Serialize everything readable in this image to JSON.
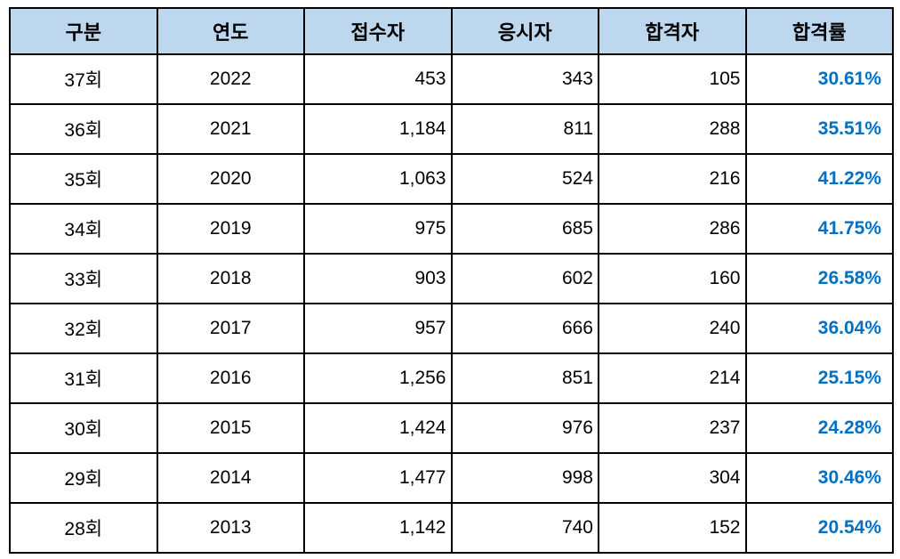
{
  "colors": {
    "header_bg": "#BDD7EE",
    "border": "#000000",
    "body_text": "#000000",
    "pass_rate_text": "#0070C0"
  },
  "table": {
    "columns": [
      {
        "label": "구분",
        "align": "center"
      },
      {
        "label": "연도",
        "align": "center"
      },
      {
        "label": "접수자",
        "align": "right"
      },
      {
        "label": "응시자",
        "align": "right"
      },
      {
        "label": "합격자",
        "align": "right"
      },
      {
        "label": "합격률",
        "align": "rate"
      }
    ],
    "rows": [
      [
        "37회",
        "2022",
        "453",
        "343",
        "105",
        "30.61%"
      ],
      [
        "36회",
        "2021",
        "1,184",
        "811",
        "288",
        "35.51%"
      ],
      [
        "35회",
        "2020",
        "1,063",
        "524",
        "216",
        "41.22%"
      ],
      [
        "34회",
        "2019",
        "975",
        "685",
        "286",
        "41.75%"
      ],
      [
        "33회",
        "2018",
        "903",
        "602",
        "160",
        "26.58%"
      ],
      [
        "32회",
        "2017",
        "957",
        "666",
        "240",
        "36.04%"
      ],
      [
        "31회",
        "2016",
        "1,256",
        "851",
        "214",
        "25.15%"
      ],
      [
        "30회",
        "2015",
        "1,424",
        "976",
        "237",
        "24.28%"
      ],
      [
        "29회",
        "2014",
        "1,477",
        "998",
        "304",
        "30.46%"
      ],
      [
        "28회",
        "2013",
        "1,142",
        "740",
        "152",
        "20.54%"
      ]
    ]
  },
  "chart_data": {
    "type": "table",
    "title": "",
    "columns": [
      "구분",
      "연도",
      "접수자",
      "응시자",
      "합격자",
      "합격률"
    ],
    "rows": [
      {
        "round": "37회",
        "year": 2022,
        "applicants": 453,
        "examinees": 343,
        "passers": 105,
        "pass_rate_pct": 30.61
      },
      {
        "round": "36회",
        "year": 2021,
        "applicants": 1184,
        "examinees": 811,
        "passers": 288,
        "pass_rate_pct": 35.51
      },
      {
        "round": "35회",
        "year": 2020,
        "applicants": 1063,
        "examinees": 524,
        "passers": 216,
        "pass_rate_pct": 41.22
      },
      {
        "round": "34회",
        "year": 2019,
        "applicants": 975,
        "examinees": 685,
        "passers": 286,
        "pass_rate_pct": 41.75
      },
      {
        "round": "33회",
        "year": 2018,
        "applicants": 903,
        "examinees": 602,
        "passers": 160,
        "pass_rate_pct": 26.58
      },
      {
        "round": "32회",
        "year": 2017,
        "applicants": 957,
        "examinees": 666,
        "passers": 240,
        "pass_rate_pct": 36.04
      },
      {
        "round": "31회",
        "year": 2016,
        "applicants": 1256,
        "examinees": 851,
        "passers": 214,
        "pass_rate_pct": 25.15
      },
      {
        "round": "30회",
        "year": 2015,
        "applicants": 1424,
        "examinees": 976,
        "passers": 237,
        "pass_rate_pct": 24.28
      },
      {
        "round": "29회",
        "year": 2014,
        "applicants": 1477,
        "examinees": 998,
        "passers": 304,
        "pass_rate_pct": 30.46
      },
      {
        "round": "28회",
        "year": 2013,
        "applicants": 1142,
        "examinees": 740,
        "passers": 152,
        "pass_rate_pct": 20.54
      }
    ]
  }
}
